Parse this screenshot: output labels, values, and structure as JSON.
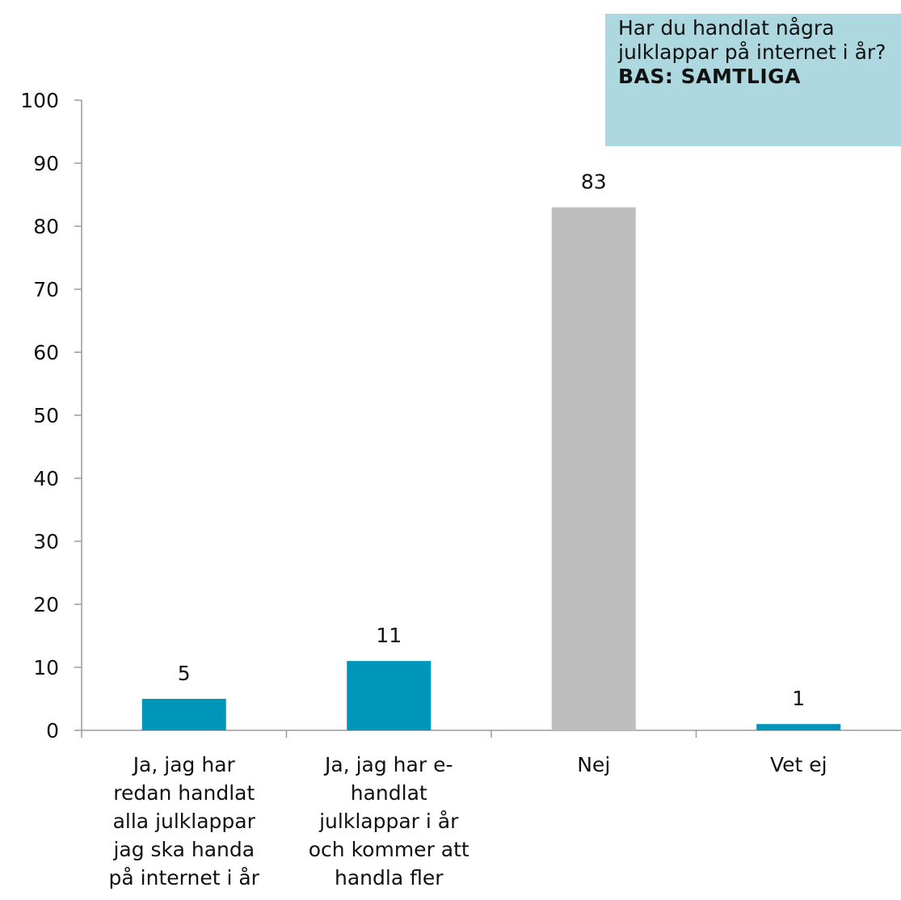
{
  "info_box": {
    "question": "Har du handlat några julklappar på internet i år?",
    "base": "BAS: SAMTLIGA",
    "background": "#add8e0"
  },
  "chart_data": {
    "type": "bar",
    "categories": [
      [
        "Ja, jag har",
        "redan handlat",
        "alla julklappar",
        "jag ska handa",
        "på internet i år"
      ],
      [
        "Ja, jag har e-",
        "handlat",
        "julklappar i år",
        "och kommer att",
        "handla fler"
      ],
      [
        "Nej"
      ],
      [
        "Vet ej"
      ]
    ],
    "values": [
      5,
      11,
      83,
      1
    ],
    "data_labels": [
      "5",
      "11",
      "83",
      "1"
    ],
    "bar_colors": [
      "#0096b9",
      "#0096b9",
      "#bebebe",
      "#0096b9"
    ],
    "ylim": [
      0,
      100
    ],
    "yticks": [
      0,
      10,
      20,
      30,
      40,
      50,
      60,
      70,
      80,
      90,
      100
    ],
    "grid": false,
    "axis_color": "#9a9a9a"
  }
}
